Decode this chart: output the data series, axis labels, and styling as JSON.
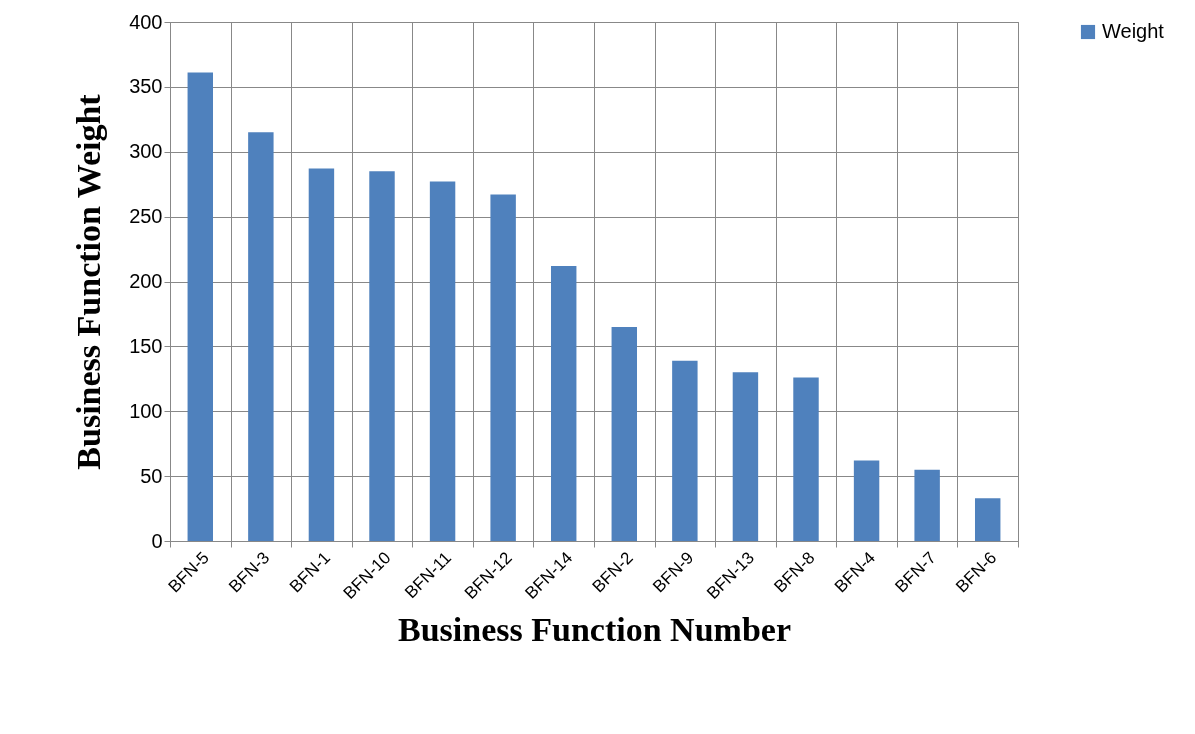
{
  "chart_data": {
    "type": "bar",
    "xlabel": "Business Function Number",
    "ylabel": "Business Function Weight",
    "categories": [
      "BFN-5",
      "BFN-3",
      "BFN-1",
      "BFN-10",
      "BFN-11",
      "BFN-12",
      "BFN-14",
      "BFN-2",
      "BFN-9",
      "BFN-13",
      "BFN-8",
      "BFN-4",
      "BFN-7",
      "BFN-6"
    ],
    "series": [
      {
        "name": "Weight",
        "color": "#4f81bd",
        "values": [
          361,
          315,
          287,
          285,
          277,
          267,
          212,
          165,
          139,
          130,
          126,
          62,
          55,
          33
        ]
      }
    ],
    "ylim": [
      0,
      400
    ],
    "yticks": [
      0,
      50,
      100,
      150,
      200,
      250,
      300,
      350,
      400
    ],
    "grid": true,
    "legend": "right"
  }
}
